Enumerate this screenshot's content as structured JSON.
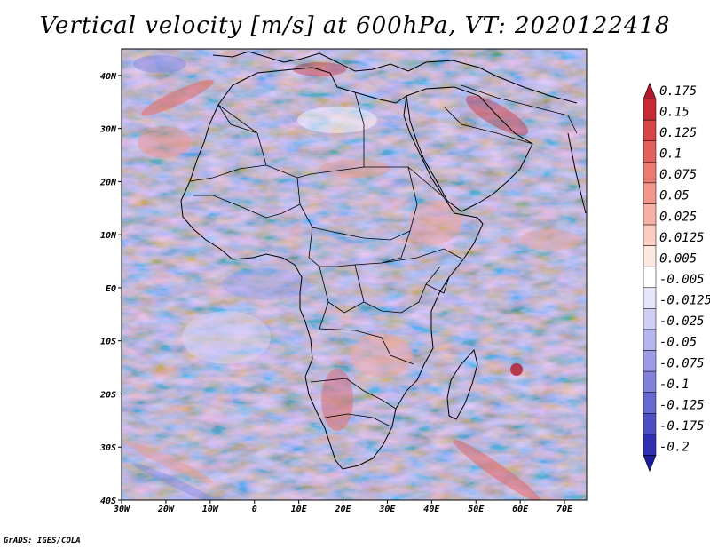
{
  "title": "Vertical velocity [m/s] at 600hPa, VT: 2020122418",
  "credit": "GrADS: IGES/COLA",
  "map": {
    "lon_range": [
      -30,
      75
    ],
    "lat_range": [
      -40,
      45
    ],
    "lon_ticks": [
      "30W",
      "20W",
      "10W",
      "0",
      "10E",
      "20E",
      "30E",
      "40E",
      "50E",
      "60E",
      "70E"
    ],
    "lat_ticks": [
      "40N",
      "30N",
      "20N",
      "10N",
      "EQ",
      "10S",
      "20S",
      "30S",
      "40S"
    ]
  },
  "colorbar": {
    "labels": [
      "0.175",
      "0.15",
      "0.125",
      "0.1",
      "0.075",
      "0.05",
      "0.025",
      "0.0125",
      "0.005",
      "-0.005",
      "-0.0125",
      "-0.025",
      "-0.05",
      "-0.075",
      "-0.1",
      "-0.125",
      "-0.175",
      "-0.2"
    ],
    "colors": [
      "#b2182b",
      "#c62a35",
      "#d64548",
      "#e2605d",
      "#ec7b74",
      "#f3968c",
      "#f8b1a6",
      "#fbcdc3",
      "#fde7e1",
      "#ffffff",
      "#e6e6fa",
      "#cfcff5",
      "#b6b6ee",
      "#9c9ce6",
      "#8282dd",
      "#6868d2",
      "#4d4dc4",
      "#3030b4",
      "#1c1ca3"
    ]
  }
}
